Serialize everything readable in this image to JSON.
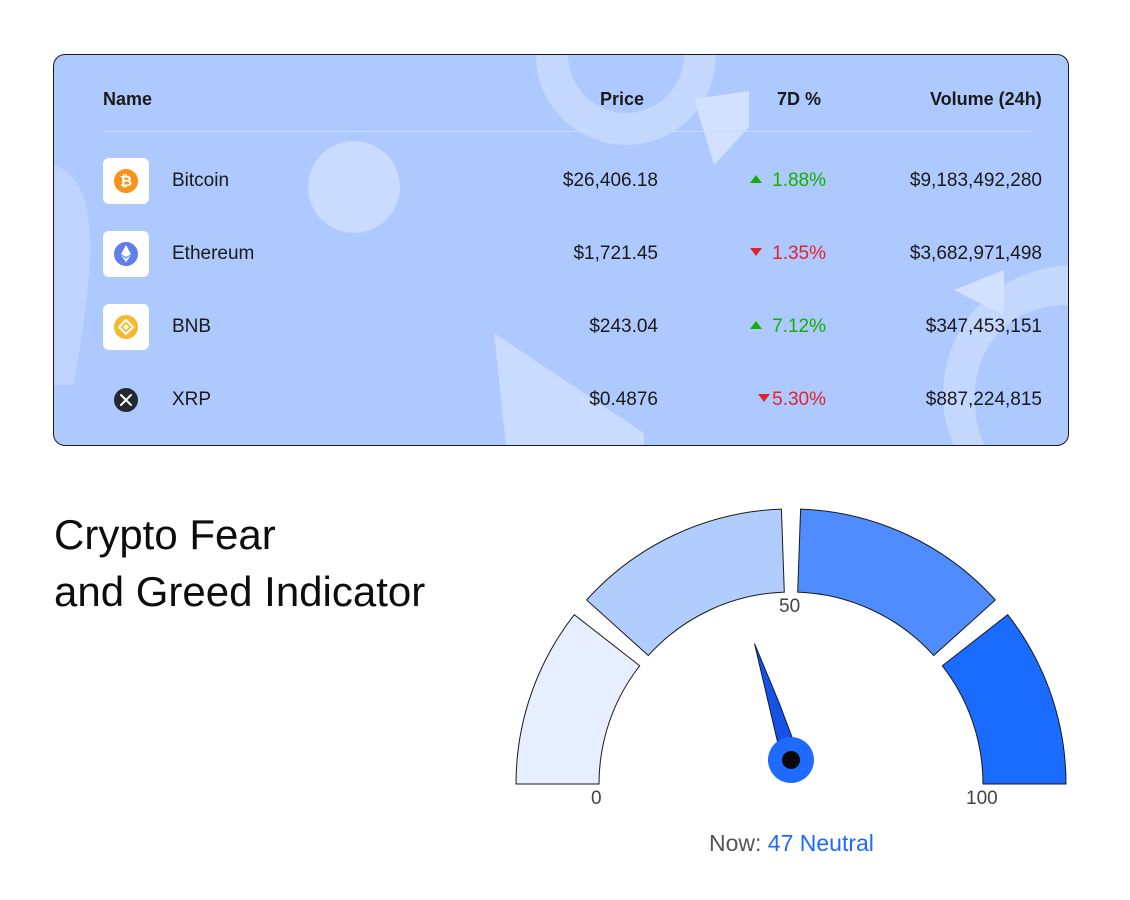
{
  "table": {
    "headers": {
      "name": "Name",
      "price": "Price",
      "change": "7D %",
      "volume": "Volume (24h)"
    },
    "rows": [
      {
        "name": "Bitcoin",
        "icon": "bitcoin-icon",
        "price": "$26,406.18",
        "change": "1.88%",
        "direction": "up",
        "volume": "$9,183,492,280"
      },
      {
        "name": "Ethereum",
        "icon": "ethereum-icon",
        "price": "$1,721.45",
        "change": "1.35%",
        "direction": "down",
        "volume": "$3,682,971,498"
      },
      {
        "name": "BNB",
        "icon": "bnb-icon",
        "price": "$243.04",
        "change": "7.12%",
        "direction": "up",
        "volume": "$347,453,151"
      },
      {
        "name": "XRP",
        "icon": "xrp-icon",
        "price": "$0.4876",
        "change": "5.30%",
        "direction": "down",
        "volume": "$887,224,815"
      }
    ],
    "colors": {
      "up": "#13b000",
      "down": "#e0242e",
      "card": "#adc9fd"
    }
  },
  "indicator": {
    "title_line1": "Crypto Fear",
    "title_line2": "and Greed Indicator",
    "scale": {
      "min": "0",
      "mid": "50",
      "max": "100"
    },
    "now_label": "Now:",
    "now_value": "47 Neutral",
    "value": 47,
    "segment_colors": [
      "#e7efff",
      "#b0cdfd",
      "#4f8cff",
      "#1a6bff"
    ]
  }
}
